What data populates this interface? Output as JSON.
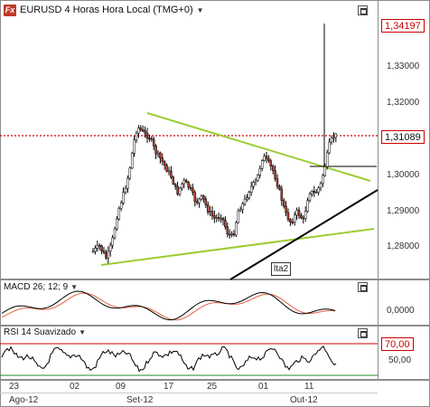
{
  "main": {
    "title": "EURUSD 4 Horas Hora Local (TMG+0)",
    "icon": "fx-icon",
    "last_price": "1,31089",
    "top_price": "1,34197",
    "y_ticks": [
      "1,33000",
      "1,32000",
      "1,30000",
      "1,29000",
      "1,28000"
    ],
    "annotation": "lta2"
  },
  "macd": {
    "title": "MACD 26; 12; 9",
    "tick": "0,0000"
  },
  "rsi": {
    "title": "RSI 14 Suavizado",
    "level": "70,00",
    "tick": "50,00"
  },
  "x_axis": {
    "days": [
      "23",
      "02",
      "09",
      "17",
      "25",
      "01",
      "11"
    ],
    "months": [
      "Ago-12",
      "Set-12",
      "Out-12"
    ]
  },
  "colors": {
    "trendline": "#9acd32",
    "support": "#000000",
    "level_line": "#cc0000",
    "macd_line": "#000000",
    "signal_line": "#e06040"
  }
}
